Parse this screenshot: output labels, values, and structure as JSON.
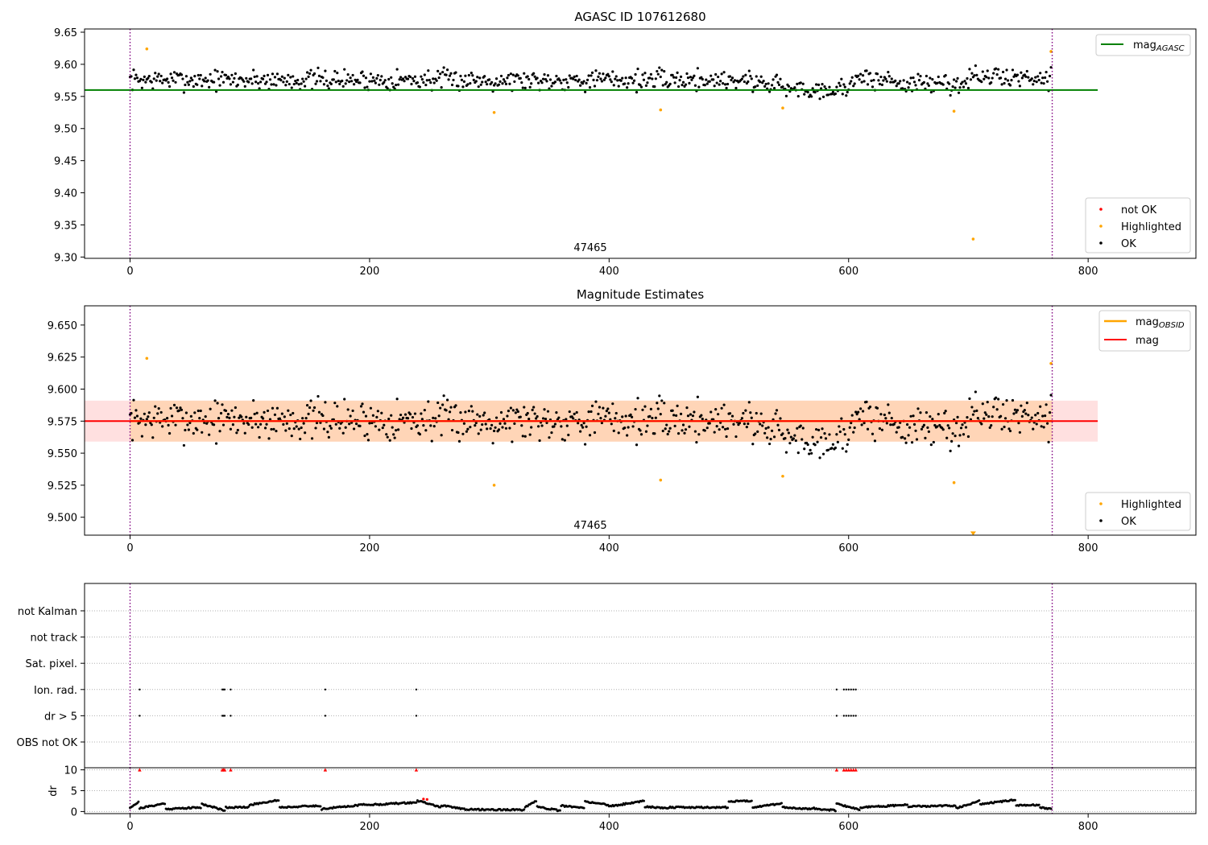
{
  "chart_data": [
    {
      "type": "scatter",
      "title": "AGASC ID 107612680",
      "annotation": "47465",
      "xlim": [
        -38,
        890
      ],
      "ylim": [
        9.298,
        9.655
      ],
      "xticks": [
        0,
        200,
        400,
        600,
        800
      ],
      "yticks": [
        9.3,
        9.35,
        9.4,
        9.45,
        9.5,
        9.55,
        9.6,
        9.65
      ],
      "ytick_decimals": 2,
      "hline": {
        "label": "mag$_{AGASC}$",
        "label_main": "mag",
        "label_sub": "AGASC",
        "value": 9.56,
        "x_range": [
          -38,
          808
        ],
        "color": "#008000"
      },
      "vlines": [
        0,
        770
      ],
      "legend_lines_position": "upper right",
      "legend_points_position": "lower right",
      "baseline": {
        "n": 770,
        "mean": 9.576,
        "spread": 0.012,
        "segments": [
          [
            545,
            600,
            -0.015
          ],
          [
            520,
            545,
            -0.005
          ],
          [
            600,
            640,
            0.0
          ],
          [
            640,
            700,
            -0.006
          ],
          [
            700,
            770,
            0.004
          ]
        ]
      },
      "series": [
        {
          "name": "not OK",
          "color": "#ff0000",
          "points": []
        },
        {
          "name": "Highlighted",
          "color": "#ffa500",
          "points": [
            [
              14,
              9.624
            ],
            [
              304,
              9.525
            ],
            [
              443,
              9.529
            ],
            [
              545,
              9.532
            ],
            [
              688,
              9.527
            ],
            [
              704,
              9.328
            ],
            [
              769,
              9.62
            ]
          ]
        },
        {
          "name": "OK",
          "color": "#000000",
          "points": "dense per-observation magnitudes; mean ≈ 9.576, range ≈ 9.535–9.613"
        }
      ]
    },
    {
      "type": "scatter",
      "title": "Magnitude Estimates",
      "annotation": "47465",
      "xlim": [
        -38,
        890
      ],
      "ylim": [
        9.486,
        9.665
      ],
      "xticks": [
        0,
        200,
        400,
        600,
        800
      ],
      "yticks": [
        9.5,
        9.525,
        9.55,
        9.575,
        9.6,
        9.625,
        9.65
      ],
      "ytick_decimals": 3,
      "lines": [
        {
          "label": "mag$_{OBSID}$",
          "label_main": "mag",
          "label_sub": "OBSID",
          "color": "#ffa500",
          "value": 9.575,
          "band": [
            9.559,
            9.591
          ],
          "x_range": [
            0,
            770
          ]
        },
        {
          "label": "mag",
          "label_main": "mag",
          "label_sub": "",
          "color": "#ff0000",
          "value": 9.575,
          "band": [
            9.559,
            9.591
          ],
          "x_range": [
            -38,
            808
          ]
        }
      ],
      "offscale_marker": {
        "x": 704,
        "y": 9.487
      },
      "vlines": [
        0,
        770
      ],
      "legend_lines_position": "upper right",
      "legend_points_position": "lower right",
      "series": [
        {
          "name": "Highlighted",
          "color": "#ffa500",
          "points": [
            [
              14,
              9.624
            ],
            [
              304,
              9.525
            ],
            [
              443,
              9.529
            ],
            [
              545,
              9.532
            ],
            [
              688,
              9.527
            ],
            [
              769,
              9.62
            ]
          ]
        },
        {
          "name": "OK",
          "color": "#000000",
          "points": "same OK magnitudes as top panel"
        }
      ]
    },
    {
      "type": "scatter",
      "title": "",
      "xlim": [
        -38,
        890
      ],
      "xticks": [
        0,
        200,
        400,
        600,
        800
      ],
      "vlines": [
        0,
        770
      ],
      "flag_rows": [
        "not Kalman",
        "not track",
        "Sat. pixel.",
        "Ion. rad.",
        "dr > 5",
        "OBS not OK"
      ],
      "flags": {
        "Ion. rad.": [
          8,
          77,
          78,
          79,
          84,
          163,
          239,
          590,
          596,
          598,
          600,
          602,
          604,
          606
        ],
        "dr > 5": [
          8,
          77,
          78,
          79,
          84,
          163,
          239,
          590,
          596,
          598,
          600,
          602,
          604,
          606
        ]
      }
    },
    {
      "type": "scatter",
      "ylabel": "dr",
      "xlim": [
        -38,
        890
      ],
      "ylim": [
        -0.5,
        10.5
      ],
      "yticks": [
        0,
        5,
        10
      ],
      "xticks": [
        0,
        200,
        400,
        600,
        800
      ],
      "xtick_labels": [
        "0",
        "200",
        "400",
        "600",
        "800"
      ],
      "vlines": [
        0,
        770
      ],
      "above_scale_markers": [
        8,
        77,
        78,
        79,
        84,
        163,
        239,
        590,
        596,
        598,
        600,
        602,
        604,
        606
      ],
      "highlighted_points": [
        [
          245,
          3.0
        ],
        [
          248,
          2.9
        ]
      ],
      "dr_profile": {
        "n": 770,
        "segments": [
          [
            0,
            8,
            1.0,
            2.4
          ],
          [
            8,
            30,
            0.8,
            2.0
          ],
          [
            30,
            60,
            0.6,
            1.0
          ],
          [
            60,
            80,
            1.8,
            0.2
          ],
          [
            80,
            100,
            1.0,
            1.0
          ],
          [
            100,
            125,
            1.6,
            2.8
          ],
          [
            125,
            160,
            1.0,
            1.4
          ],
          [
            160,
            200,
            0.6,
            1.8
          ],
          [
            200,
            240,
            1.6,
            2.2
          ],
          [
            240,
            260,
            2.6,
            1.0
          ],
          [
            260,
            280,
            1.4,
            0.6
          ],
          [
            280,
            330,
            0.5,
            0.4
          ],
          [
            330,
            340,
            1.0,
            2.6
          ],
          [
            340,
            360,
            1.2,
            0.1
          ],
          [
            360,
            380,
            1.4,
            0.8
          ],
          [
            380,
            400,
            2.4,
            1.6
          ],
          [
            400,
            430,
            1.2,
            2.6
          ],
          [
            430,
            450,
            1.2,
            0.8
          ],
          [
            450,
            500,
            1.0,
            1.0
          ],
          [
            500,
            520,
            2.4,
            2.6
          ],
          [
            520,
            545,
            1.0,
            2.0
          ],
          [
            545,
            570,
            1.0,
            0.6
          ],
          [
            570,
            590,
            0.8,
            0.2
          ],
          [
            590,
            610,
            1.8,
            0.4
          ],
          [
            610,
            650,
            1.0,
            1.6
          ],
          [
            650,
            690,
            1.2,
            1.4
          ],
          [
            690,
            710,
            0.8,
            2.6
          ],
          [
            710,
            740,
            1.8,
            2.8
          ],
          [
            740,
            760,
            1.4,
            1.6
          ],
          [
            760,
            770,
            1.0,
            0.6
          ]
        ]
      }
    }
  ]
}
